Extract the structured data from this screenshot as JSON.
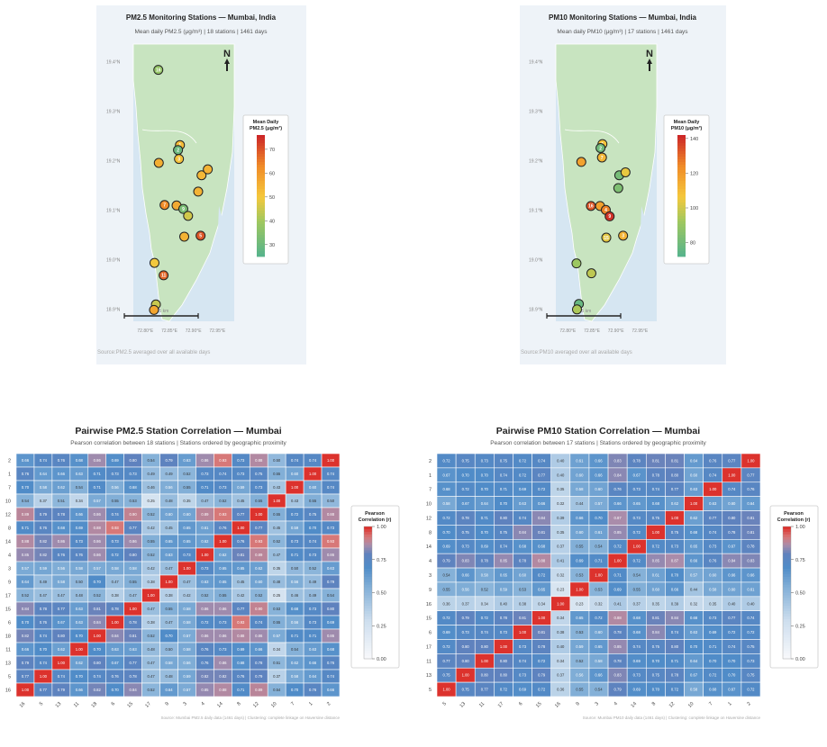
{
  "chart_data": [
    {
      "type": "scatter",
      "title": "PM2.5 Monitoring Stations — Mumbai, India",
      "subtitle": "Mean daily PM2.5 (μg/m³) | 18 stations | 1461 days",
      "source": "Source:PM2.5 averaged over all available days",
      "colorbar_title": [
        "Mean Daily",
        "PM2.5 (μg/m³)"
      ],
      "colorbar_range": [
        25,
        76
      ],
      "colorbar_ticks": [
        30,
        40,
        50,
        60,
        70
      ],
      "north": "N",
      "scale_label": "~15 km",
      "lat_ticks": [
        {
          "v": 19.4,
          "t": "19.4°N"
        },
        {
          "v": 19.3,
          "t": "19.3°N"
        },
        {
          "v": 19.2,
          "t": "19.2°N"
        },
        {
          "v": 19.1,
          "t": "19.1°N"
        },
        {
          "v": 19.0,
          "t": "19.0°N"
        },
        {
          "v": 18.9,
          "t": "18.9°N"
        }
      ],
      "lon_ticks": [
        {
          "v": 72.8,
          "t": "72.80°E"
        },
        {
          "v": 72.85,
          "t": "72.85°E"
        },
        {
          "v": 72.9,
          "t": "72.90°E"
        },
        {
          "v": 72.95,
          "t": "72.95°E"
        }
      ],
      "points": [
        {
          "lon": 72.827,
          "lat": 19.383,
          "v": 38,
          "label": "16"
        },
        {
          "lon": 72.872,
          "lat": 19.231,
          "v": 53,
          "label": "1"
        },
        {
          "lon": 72.868,
          "lat": 19.221,
          "v": 30,
          "label": "2"
        },
        {
          "lon": 72.87,
          "lat": 19.203,
          "v": 52,
          "label": "3"
        },
        {
          "lon": 72.828,
          "lat": 19.195,
          "v": 56,
          "label": ""
        },
        {
          "lon": 72.917,
          "lat": 19.17,
          "v": 54,
          "label": ""
        },
        {
          "lon": 72.93,
          "lat": 19.182,
          "v": 55,
          "label": ""
        },
        {
          "lon": 72.91,
          "lat": 19.137,
          "v": 55,
          "label": ""
        },
        {
          "lon": 72.84,
          "lat": 19.11,
          "v": 63,
          "label": "7"
        },
        {
          "lon": 72.865,
          "lat": 19.109,
          "v": 57,
          "label": ""
        },
        {
          "lon": 72.879,
          "lat": 19.102,
          "v": 33,
          "label": "9"
        },
        {
          "lon": 72.889,
          "lat": 19.088,
          "v": 46,
          "label": ""
        },
        {
          "lon": 72.881,
          "lat": 19.046,
          "v": 55,
          "label": ""
        },
        {
          "lon": 72.915,
          "lat": 19.048,
          "v": 70,
          "label": "5"
        },
        {
          "lon": 72.819,
          "lat": 18.993,
          "v": 50,
          "label": ""
        },
        {
          "lon": 72.838,
          "lat": 18.968,
          "v": 68,
          "label": "11"
        },
        {
          "lon": 72.822,
          "lat": 18.909,
          "v": 45,
          "label": ""
        },
        {
          "lon": 72.818,
          "lat": 18.898,
          "v": 58,
          "label": ""
        }
      ]
    },
    {
      "type": "scatter",
      "title": "PM10 Monitoring Stations — Mumbai, India",
      "subtitle": "Mean daily PM10 (μg/m³) | 17 stations | 1461 days",
      "source": "Source:PM10 averaged over all available days",
      "colorbar_title": [
        "Mean Daily",
        "PM10 (μg/m³)"
      ],
      "colorbar_range": [
        72,
        142
      ],
      "colorbar_ticks": [
        80,
        100,
        120,
        140
      ],
      "north": "N",
      "scale_label": "~15 km",
      "lat_ticks": [
        {
          "v": 19.4,
          "t": "19.4°N"
        },
        {
          "v": 19.3,
          "t": "19.3°N"
        },
        {
          "v": 19.2,
          "t": "19.2°N"
        },
        {
          "v": 19.1,
          "t": "19.1°N"
        },
        {
          "v": 19.0,
          "t": "19.0°N"
        },
        {
          "v": 18.9,
          "t": "18.9°N"
        }
      ],
      "lon_ticks": [
        {
          "v": 72.8,
          "t": "72.80°E"
        },
        {
          "v": 72.85,
          "t": "72.85°E"
        },
        {
          "v": 72.9,
          "t": "72.90°E"
        },
        {
          "v": 72.95,
          "t": "72.95°E"
        }
      ],
      "points": [
        {
          "lon": 72.872,
          "lat": 19.233,
          "v": 108,
          "label": "1"
        },
        {
          "lon": 72.868,
          "lat": 19.225,
          "v": 80,
          "label": "2"
        },
        {
          "lon": 72.871,
          "lat": 19.206,
          "v": 112,
          "label": "7"
        },
        {
          "lon": 72.828,
          "lat": 19.197,
          "v": 118,
          "label": ""
        },
        {
          "lon": 72.907,
          "lat": 19.17,
          "v": 82,
          "label": ""
        },
        {
          "lon": 72.92,
          "lat": 19.176,
          "v": 105,
          "label": ""
        },
        {
          "lon": 72.905,
          "lat": 19.144,
          "v": 84,
          "label": ""
        },
        {
          "lon": 72.848,
          "lat": 19.108,
          "v": 134,
          "label": "16"
        },
        {
          "lon": 72.867,
          "lat": 19.108,
          "v": 118,
          "label": ""
        },
        {
          "lon": 72.879,
          "lat": 19.1,
          "v": 126,
          "label": "4"
        },
        {
          "lon": 72.887,
          "lat": 19.087,
          "v": 140,
          "label": "9"
        },
        {
          "lon": 72.88,
          "lat": 19.044,
          "v": 104,
          "label": "15"
        },
        {
          "lon": 72.915,
          "lat": 19.048,
          "v": 113,
          "label": "3"
        },
        {
          "lon": 72.818,
          "lat": 18.992,
          "v": 92,
          "label": ""
        },
        {
          "lon": 72.849,
          "lat": 18.972,
          "v": 98,
          "label": ""
        },
        {
          "lon": 72.823,
          "lat": 18.91,
          "v": 78,
          "label": ""
        },
        {
          "lon": 72.819,
          "lat": 18.899,
          "v": 95,
          "label": ""
        }
      ]
    },
    {
      "type": "heatmap",
      "title": "Pairwise PM2.5 Station Correlation — Mumbai",
      "subtitle": "Pearson correlation between 18 stations | Stations ordered by geographic proximity",
      "source": "Source: Mumbai PM2.5 daily data (1461 days) | Clustering: complete linkage on Haversine distance",
      "colorbar_title": [
        "Pearson",
        "Correlation (r)"
      ],
      "colorbar_ticks": [
        "1.00",
        "0.75",
        "0.50",
        "0.25",
        "0.00"
      ],
      "rows": [
        "2",
        "1",
        "7",
        "10",
        "12",
        "8",
        "14",
        "4",
        "3",
        "9",
        "17",
        "15",
        "6",
        "18",
        "11",
        "13",
        "5",
        "16"
      ],
      "cols": [
        "16",
        "5",
        "13",
        "11",
        "18",
        "6",
        "15",
        "17",
        "9",
        "3",
        "4",
        "14",
        "8",
        "12",
        "10",
        "7",
        "1",
        "2"
      ],
      "values": [
        [
          0.66,
          0.74,
          0.76,
          0.68,
          0.86,
          0.69,
          0.8,
          0.54,
          0.79,
          0.63,
          0.86,
          0.93,
          0.73,
          0.88,
          0.5,
          0.74,
          0.74,
          1.0
        ],
        [
          0.76,
          0.64,
          0.66,
          0.63,
          0.71,
          0.73,
          0.73,
          0.49,
          0.49,
          0.52,
          0.73,
          0.74,
          0.73,
          0.75,
          0.55,
          0.6,
          1.0,
          0.74
        ],
        [
          0.7,
          0.58,
          0.62,
          0.54,
          0.71,
          0.56,
          0.68,
          0.46,
          0.56,
          0.55,
          0.71,
          0.73,
          0.59,
          0.73,
          0.43,
          1.0,
          0.6,
          0.74
        ],
        [
          0.54,
          0.37,
          0.51,
          0.34,
          0.57,
          0.55,
          0.53,
          0.25,
          0.48,
          0.35,
          0.47,
          0.52,
          0.45,
          0.55,
          1.0,
          0.43,
          0.55,
          0.5
        ],
        [
          0.89,
          0.79,
          0.78,
          0.66,
          0.86,
          0.74,
          0.9,
          0.52,
          0.6,
          0.6,
          0.89,
          0.93,
          0.77,
          1.0,
          0.55,
          0.72,
          0.75,
          0.88
        ],
        [
          0.71,
          0.76,
          0.68,
          0.69,
          0.88,
          0.93,
          0.77,
          0.42,
          0.45,
          0.65,
          0.61,
          0.76,
          1.0,
          0.77,
          0.45,
          0.59,
          0.7,
          0.73
        ],
        [
          0.88,
          0.82,
          0.86,
          0.73,
          0.86,
          0.73,
          0.86,
          0.55,
          0.65,
          0.65,
          0.62,
          1.0,
          0.76,
          0.93,
          0.52,
          0.73,
          0.74,
          0.93
        ],
        [
          0.85,
          0.82,
          0.76,
          0.76,
          0.86,
          0.72,
          0.8,
          0.52,
          0.63,
          0.73,
          1.0,
          0.62,
          0.81,
          0.89,
          0.47,
          0.71,
          0.73,
          0.86
        ],
        [
          0.57,
          0.59,
          0.56,
          0.58,
          0.57,
          0.58,
          0.58,
          0.42,
          0.47,
          1.0,
          0.73,
          0.65,
          0.65,
          0.62,
          0.35,
          0.5,
          0.52,
          0.63
        ],
        [
          0.64,
          0.49,
          0.58,
          0.5,
          0.7,
          0.47,
          0.55,
          0.38,
          1.0,
          0.47,
          0.63,
          0.65,
          0.45,
          0.6,
          0.48,
          0.56,
          0.49,
          0.79
        ],
        [
          0.52,
          0.47,
          0.47,
          0.48,
          0.52,
          0.38,
          0.47,
          1.0,
          0.38,
          0.42,
          0.52,
          0.55,
          0.42,
          0.52,
          0.25,
          0.46,
          0.49,
          0.54
        ],
        [
          0.84,
          0.78,
          0.77,
          0.63,
          0.81,
          0.78,
          1.0,
          0.47,
          0.55,
          0.58,
          0.86,
          0.86,
          0.77,
          0.9,
          0.53,
          0.68,
          0.73,
          0.8
        ],
        [
          0.7,
          0.76,
          0.67,
          0.63,
          0.84,
          1.0,
          0.78,
          0.38,
          0.47,
          0.58,
          0.72,
          0.73,
          0.93,
          0.74,
          0.55,
          0.56,
          0.73,
          0.69
        ],
        [
          0.82,
          0.74,
          0.8,
          0.7,
          1.0,
          0.84,
          0.81,
          0.52,
          0.7,
          0.57,
          0.86,
          0.86,
          0.88,
          0.86,
          0.57,
          0.71,
          0.71,
          0.86
        ],
        [
          0.66,
          0.7,
          0.62,
          1.0,
          0.7,
          0.63,
          0.63,
          0.48,
          0.5,
          0.58,
          0.76,
          0.73,
          0.69,
          0.66,
          0.34,
          0.54,
          0.63,
          0.68
        ],
        [
          0.79,
          0.74,
          1.0,
          0.62,
          0.8,
          0.67,
          0.77,
          0.47,
          0.58,
          0.56,
          0.76,
          0.86,
          0.68,
          0.78,
          0.51,
          0.62,
          0.66,
          0.76
        ],
        [
          0.77,
          1.0,
          0.74,
          0.7,
          0.74,
          0.76,
          0.78,
          0.47,
          0.48,
          0.59,
          0.82,
          0.82,
          0.76,
          0.79,
          0.37,
          0.58,
          0.64,
          0.74
        ],
        [
          1.0,
          0.77,
          0.79,
          0.66,
          0.82,
          0.7,
          0.84,
          0.52,
          0.64,
          0.57,
          0.85,
          0.88,
          0.71,
          0.89,
          0.54,
          0.7,
          0.76,
          0.66
        ]
      ]
    },
    {
      "type": "heatmap",
      "title": "Pairwise PM10 Station Correlation — Mumbai",
      "subtitle": "Pearson correlation between 17 stations | Stations ordered by geographic proximity",
      "source": "Source: Mumbai PM10 daily data (1461 days) | Clustering: complete linkage on Haversine distance",
      "colorbar_title": [
        "Pearson",
        "Correlation (r)"
      ],
      "colorbar_ticks": [
        "1.00",
        "0.75",
        "0.50",
        "0.25",
        "0.00"
      ],
      "rows": [
        "2",
        "1",
        "7",
        "10",
        "12",
        "8",
        "14",
        "4",
        "3",
        "9",
        "16",
        "15",
        "6",
        "17",
        "11",
        "13",
        "5"
      ],
      "cols": [
        "5",
        "13",
        "11",
        "17",
        "6",
        "15",
        "16",
        "9",
        "3",
        "4",
        "14",
        "8",
        "12",
        "10",
        "7",
        "1",
        "2"
      ],
      "values": [
        [
          0.72,
          0.75,
          0.73,
          0.75,
          0.72,
          0.74,
          0.4,
          0.61,
          0.66,
          0.83,
          0.78,
          0.81,
          0.81,
          0.64,
          0.76,
          0.77,
          1.0
        ],
        [
          0.67,
          0.7,
          0.7,
          0.74,
          0.72,
          0.77,
          0.4,
          0.6,
          0.66,
          0.84,
          0.67,
          0.78,
          0.8,
          0.6,
          0.74,
          1.0,
          0.77
        ],
        [
          0.68,
          0.72,
          0.7,
          0.71,
          0.69,
          0.72,
          0.35,
          0.58,
          0.6,
          0.76,
          0.73,
          0.74,
          0.77,
          0.63,
          1.0,
          0.74,
          0.76
        ],
        [
          0.58,
          0.67,
          0.64,
          0.7,
          0.63,
          0.66,
          0.32,
          0.44,
          0.57,
          0.66,
          0.65,
          0.68,
          0.62,
          1.0,
          0.63,
          0.6,
          0.64
        ],
        [
          0.72,
          0.78,
          0.71,
          0.8,
          0.74,
          0.84,
          0.39,
          0.66,
          0.7,
          0.87,
          0.73,
          0.75,
          1.0,
          0.62,
          0.77,
          0.8,
          0.81
        ],
        [
          0.7,
          0.75,
          0.7,
          0.75,
          0.84,
          0.81,
          0.35,
          0.6,
          0.61,
          0.85,
          0.72,
          1.0,
          0.75,
          0.68,
          0.74,
          0.78,
          0.81
        ],
        [
          0.69,
          0.73,
          0.69,
          0.74,
          0.68,
          0.68,
          0.37,
          0.55,
          0.54,
          0.72,
          1.0,
          0.72,
          0.73,
          0.65,
          0.73,
          0.67,
          0.78
        ],
        [
          0.79,
          0.83,
          0.78,
          0.85,
          0.78,
          0.88,
          0.41,
          0.69,
          0.71,
          1.0,
          0.72,
          0.85,
          0.87,
          0.66,
          0.76,
          0.84,
          0.83
        ],
        [
          0.54,
          0.66,
          0.58,
          0.65,
          0.6,
          0.72,
          0.32,
          0.53,
          1.0,
          0.71,
          0.54,
          0.61,
          0.7,
          0.57,
          0.6,
          0.66,
          0.66
        ],
        [
          0.55,
          0.56,
          0.52,
          0.59,
          0.53,
          0.65,
          0.23,
          1.0,
          0.53,
          0.69,
          0.55,
          0.6,
          0.66,
          0.44,
          0.58,
          0.6,
          0.61
        ],
        [
          0.36,
          0.37,
          0.34,
          0.4,
          0.38,
          0.34,
          1.0,
          0.23,
          0.32,
          0.41,
          0.37,
          0.35,
          0.39,
          0.32,
          0.35,
          0.4,
          0.4
        ],
        [
          0.72,
          0.79,
          0.72,
          0.78,
          0.81,
          1.0,
          0.34,
          0.65,
          0.72,
          0.88,
          0.68,
          0.81,
          0.84,
          0.68,
          0.73,
          0.77,
          0.74
        ],
        [
          0.69,
          0.73,
          0.74,
          0.73,
          1.0,
          0.81,
          0.38,
          0.53,
          0.6,
          0.78,
          0.68,
          0.84,
          0.74,
          0.63,
          0.69,
          0.72,
          0.72
        ],
        [
          0.72,
          0.8,
          0.8,
          1.0,
          0.73,
          0.78,
          0.4,
          0.59,
          0.65,
          0.85,
          0.74,
          0.75,
          0.8,
          0.7,
          0.71,
          0.74,
          0.75
        ],
        [
          0.77,
          0.8,
          1.0,
          0.8,
          0.74,
          0.72,
          0.34,
          0.52,
          0.58,
          0.78,
          0.69,
          0.7,
          0.71,
          0.64,
          0.7,
          0.7,
          0.73
        ],
        [
          0.75,
          1.0,
          0.8,
          0.8,
          0.73,
          0.79,
          0.37,
          0.56,
          0.66,
          0.83,
          0.73,
          0.75,
          0.78,
          0.67,
          0.72,
          0.7,
          0.75
        ],
        [
          1.0,
          0.75,
          0.77,
          0.72,
          0.69,
          0.72,
          0.36,
          0.55,
          0.54,
          0.79,
          0.69,
          0.7,
          0.72,
          0.58,
          0.68,
          0.67,
          0.72
        ]
      ]
    }
  ]
}
